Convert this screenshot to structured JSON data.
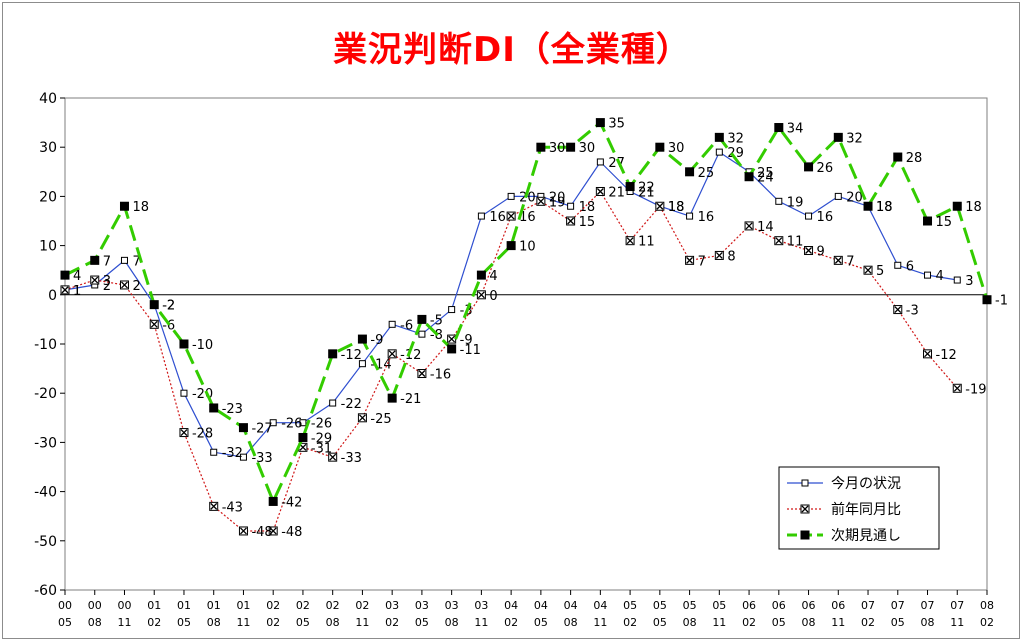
{
  "chart_data": {
    "type": "line",
    "title": "業況判断DI（全業種）",
    "categories": [
      [
        "00",
        "05"
      ],
      [
        "00",
        "08"
      ],
      [
        "00",
        "11"
      ],
      [
        "01",
        "02"
      ],
      [
        "01",
        "05"
      ],
      [
        "01",
        "08"
      ],
      [
        "01",
        "11"
      ],
      [
        "02",
        "02"
      ],
      [
        "02",
        "05"
      ],
      [
        "02",
        "08"
      ],
      [
        "02",
        "11"
      ],
      [
        "03",
        "02"
      ],
      [
        "03",
        "05"
      ],
      [
        "03",
        "08"
      ],
      [
        "03",
        "11"
      ],
      [
        "04",
        "02"
      ],
      [
        "04",
        "05"
      ],
      [
        "04",
        "08"
      ],
      [
        "04",
        "11"
      ],
      [
        "05",
        "02"
      ],
      [
        "05",
        "05"
      ],
      [
        "05",
        "08"
      ],
      [
        "05",
        "11"
      ],
      [
        "06",
        "02"
      ],
      [
        "06",
        "05"
      ],
      [
        "06",
        "08"
      ],
      [
        "06",
        "11"
      ],
      [
        "07",
        "02"
      ],
      [
        "07",
        "05"
      ],
      [
        "07",
        "08"
      ],
      [
        "07",
        "11"
      ],
      [
        "08",
        "02"
      ]
    ],
    "ylim": [
      -60,
      40
    ],
    "yticks": [
      40,
      30,
      20,
      10,
      0,
      -10,
      -20,
      -30,
      -40,
      -50,
      -60
    ],
    "grid": false,
    "legend_position": "bottom-right",
    "series": [
      {
        "name": "今月の状況",
        "color": "#2f4fd0",
        "style": "solid",
        "marker": "hollow-square",
        "values": [
          1,
          2,
          7,
          -2,
          -20,
          -32,
          -33,
          -26,
          -26,
          -22,
          -14,
          -6,
          -8,
          -3,
          16,
          20,
          20,
          18,
          27,
          21,
          18,
          16,
          29,
          25,
          19,
          16,
          20,
          18,
          6,
          4,
          3,
          null
        ]
      },
      {
        "name": "前年同月比",
        "color": "#d01818",
        "style": "dotted",
        "marker": "x-square",
        "values": [
          1,
          3,
          2,
          -6,
          -28,
          -43,
          -48,
          -48,
          -31,
          -33,
          -25,
          -12,
          -16,
          -9,
          0,
          16,
          19,
          15,
          21,
          11,
          18,
          7,
          8,
          14,
          11,
          9,
          7,
          5,
          -3,
          -12,
          -19,
          null
        ]
      },
      {
        "name": "次期見通し",
        "color": "#33cc00",
        "style": "dashed",
        "marker": "filled-square",
        "values": [
          4,
          7,
          18,
          -2,
          -10,
          -23,
          -27,
          -42,
          -29,
          -12,
          -9,
          -21,
          -5,
          -11,
          4,
          10,
          30,
          30,
          35,
          22,
          30,
          25,
          32,
          24,
          34,
          26,
          32,
          18,
          28,
          15,
          18,
          -1
        ]
      }
    ]
  }
}
